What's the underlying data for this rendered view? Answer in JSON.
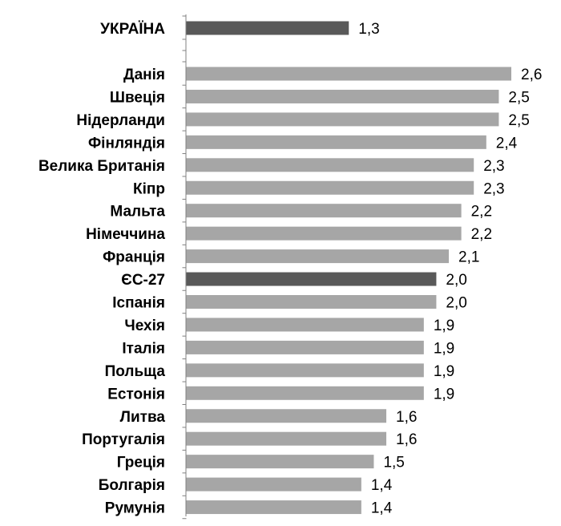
{
  "chart_data": {
    "type": "bar",
    "orientation": "horizontal",
    "title": "",
    "xlabel": "",
    "ylabel": "",
    "xlim": [
      0,
      2.6
    ],
    "grid": false,
    "legend": "none",
    "colors": {
      "highlight": "#595959",
      "default": "#a6a6a6",
      "axis": "#808080"
    },
    "categories": [
      "УКРАЇНА",
      "Данія",
      "Швеція",
      "Нідерланди",
      "Фінляндія",
      "Велика Британія",
      "Кіпр",
      "Мальта",
      "Німеччина",
      "Франція",
      "ЄС-27",
      "Іспанія",
      "Чехія",
      "Італія",
      "Польща",
      "Естонія",
      "Литва",
      "Португалія",
      "Греція",
      "Болгарія",
      "Румунія"
    ],
    "values": [
      1.3,
      2.6,
      2.5,
      2.5,
      2.4,
      2.3,
      2.3,
      2.2,
      2.2,
      2.1,
      2.0,
      2.0,
      1.9,
      1.9,
      1.9,
      1.9,
      1.6,
      1.6,
      1.5,
      1.4,
      1.4
    ],
    "value_labels": [
      "1,3",
      "2,6",
      "2,5",
      "2,5",
      "2,4",
      "2,3",
      "2,3",
      "2,2",
      "2,2",
      "2,1",
      "2,0",
      "2,0",
      "1,9",
      "1,9",
      "1,9",
      "1,9",
      "1,6",
      "1,6",
      "1,5",
      "1,4",
      "1,4"
    ],
    "highlighted": [
      "УКРАЇНА",
      "ЄС-27"
    ]
  }
}
